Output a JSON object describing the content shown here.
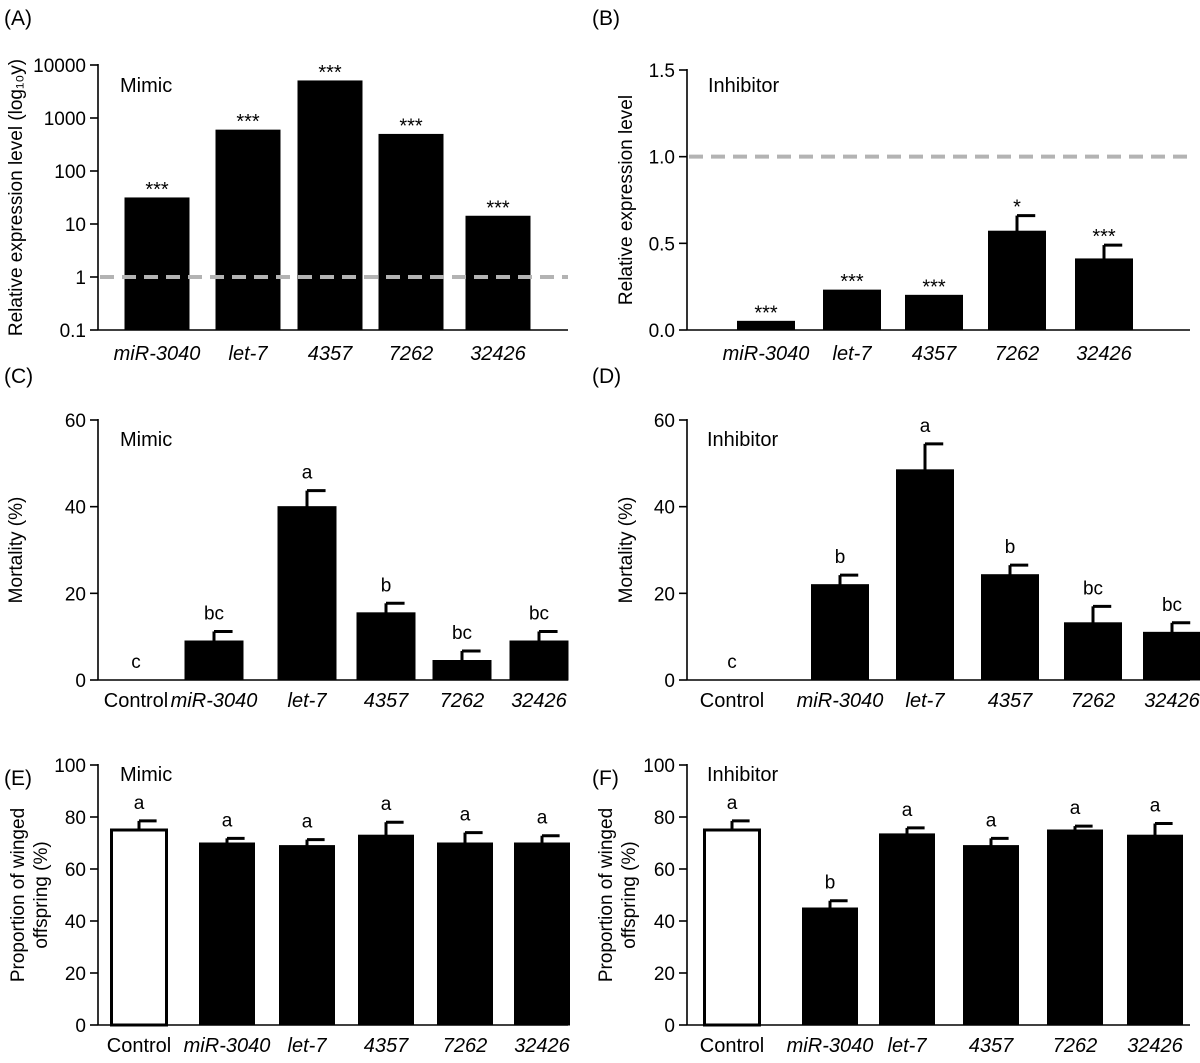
{
  "colors": {
    "bar_fill": "#000000",
    "control_fill": "#ffffff",
    "reference_line": "#b3b3b3"
  },
  "chart_data": [
    {
      "id": "A",
      "type": "bar",
      "panel_label": "(A)",
      "annotation": "Mimic",
      "ylabel": "Relative expression level (log₁₀y)",
      "yscale": "log",
      "ylim": [
        0.1,
        10000
      ],
      "yticks": [
        0.1,
        1,
        10,
        100,
        1000,
        10000
      ],
      "ytick_labels": [
        "0.1",
        "1",
        "10",
        "100",
        "1000",
        "10000"
      ],
      "reference_line": 1,
      "categories": [
        "miR-3040",
        "let-7",
        "4357",
        "7262",
        "32426"
      ],
      "italic_categories": [
        true,
        true,
        true,
        true,
        true
      ],
      "values": [
        31,
        590,
        5000,
        490,
        14
      ],
      "errors": [
        0,
        0,
        0,
        0,
        0
      ],
      "significance": [
        "***",
        "***",
        "***",
        "***",
        "***"
      ]
    },
    {
      "id": "B",
      "type": "bar",
      "panel_label": "(B)",
      "annotation": "Inhibitor",
      "ylabel": "Relative expression level",
      "yscale": "linear",
      "ylim": [
        0,
        1.5
      ],
      "yticks": [
        0,
        0.5,
        1.0,
        1.5
      ],
      "ytick_labels": [
        "0.0",
        "0.5",
        "1.0",
        "1.5"
      ],
      "reference_line": 1.0,
      "categories": [
        "miR-3040",
        "let-7",
        "4357",
        "7262",
        "32426"
      ],
      "italic_categories": [
        true,
        true,
        true,
        true,
        true
      ],
      "values": [
        0.05,
        0.23,
        0.2,
        0.57,
        0.41
      ],
      "errors": [
        0,
        0,
        0,
        0.09,
        0.08
      ],
      "significance": [
        "***",
        "***",
        "***",
        "*",
        "***"
      ]
    },
    {
      "id": "C",
      "type": "bar",
      "panel_label": "(C)",
      "annotation": "Mimic",
      "ylabel": "Mortality (%)",
      "yscale": "linear",
      "ylim": [
        0,
        60
      ],
      "yticks": [
        0,
        20,
        40,
        60
      ],
      "ytick_labels": [
        "0",
        "20",
        "40",
        "60"
      ],
      "categories": [
        "Control",
        "miR-3040",
        "let-7",
        "4357",
        "7262",
        "32426"
      ],
      "italic_categories": [
        false,
        true,
        true,
        true,
        true,
        true
      ],
      "values": [
        0,
        9,
        40,
        15.5,
        4.5,
        9
      ],
      "errors": [
        0,
        2.2,
        3.7,
        2.2,
        2.2,
        2.2
      ],
      "significance": [
        "c",
        "bc",
        "a",
        "b",
        "bc",
        "bc"
      ]
    },
    {
      "id": "D",
      "type": "bar",
      "panel_label": "(D)",
      "annotation": "Inhibitor",
      "ylabel": "Mortality (%)",
      "yscale": "linear",
      "ylim": [
        0,
        60
      ],
      "yticks": [
        0,
        20,
        40,
        60
      ],
      "ytick_labels": [
        "0",
        "20",
        "40",
        "60"
      ],
      "categories": [
        "Control",
        "miR-3040",
        "let-7",
        "4357",
        "7262",
        "32426"
      ],
      "italic_categories": [
        false,
        true,
        true,
        true,
        true,
        true
      ],
      "values": [
        0,
        22,
        48.5,
        24.3,
        13.2,
        11
      ],
      "errors": [
        0,
        2.2,
        6,
        2.2,
        3.8,
        2.2
      ],
      "significance": [
        "c",
        "b",
        "a",
        "b",
        "bc",
        "bc"
      ]
    },
    {
      "id": "E",
      "type": "bar",
      "panel_label": "(E)",
      "annotation": "Mimic",
      "ylabel_lines": [
        "Proportion of winged",
        "offspring (%)"
      ],
      "yscale": "linear",
      "ylim": [
        0,
        100
      ],
      "yticks": [
        0,
        20,
        40,
        60,
        80,
        100
      ],
      "ytick_labels": [
        "0",
        "20",
        "40",
        "60",
        "80",
        "100"
      ],
      "categories": [
        "Control",
        "miR-3040",
        "let-7",
        "4357",
        "7262",
        "32426"
      ],
      "italic_categories": [
        false,
        true,
        true,
        true,
        true,
        true
      ],
      "values": [
        75,
        70,
        69,
        73,
        70,
        70
      ],
      "errors": [
        3.5,
        1.8,
        2.3,
        5,
        4,
        2.8
      ],
      "open_bars": [
        true,
        false,
        false,
        false,
        false,
        false
      ],
      "significance": [
        "a",
        "a",
        "a",
        "a",
        "a",
        "a"
      ]
    },
    {
      "id": "F",
      "type": "bar",
      "panel_label": "(F)",
      "annotation": "Inhibitor",
      "ylabel_lines": [
        "Proportion of winged",
        "offspring (%)"
      ],
      "yscale": "linear",
      "ylim": [
        0,
        100
      ],
      "yticks": [
        0,
        20,
        40,
        60,
        80,
        100
      ],
      "ytick_labels": [
        "0",
        "20",
        "40",
        "60",
        "80",
        "100"
      ],
      "categories": [
        "Control",
        "miR-3040",
        "let-7",
        "4357",
        "7262",
        "32426"
      ],
      "italic_categories": [
        false,
        true,
        true,
        true,
        true,
        true
      ],
      "values": [
        75,
        45,
        73.5,
        69,
        75,
        73
      ],
      "errors": [
        3.5,
        2.8,
        2.3,
        2.8,
        1.5,
        4.5
      ],
      "open_bars": [
        true,
        false,
        false,
        false,
        false,
        false
      ],
      "significance": [
        "a",
        "b",
        "a",
        "a",
        "a",
        "a"
      ]
    }
  ]
}
